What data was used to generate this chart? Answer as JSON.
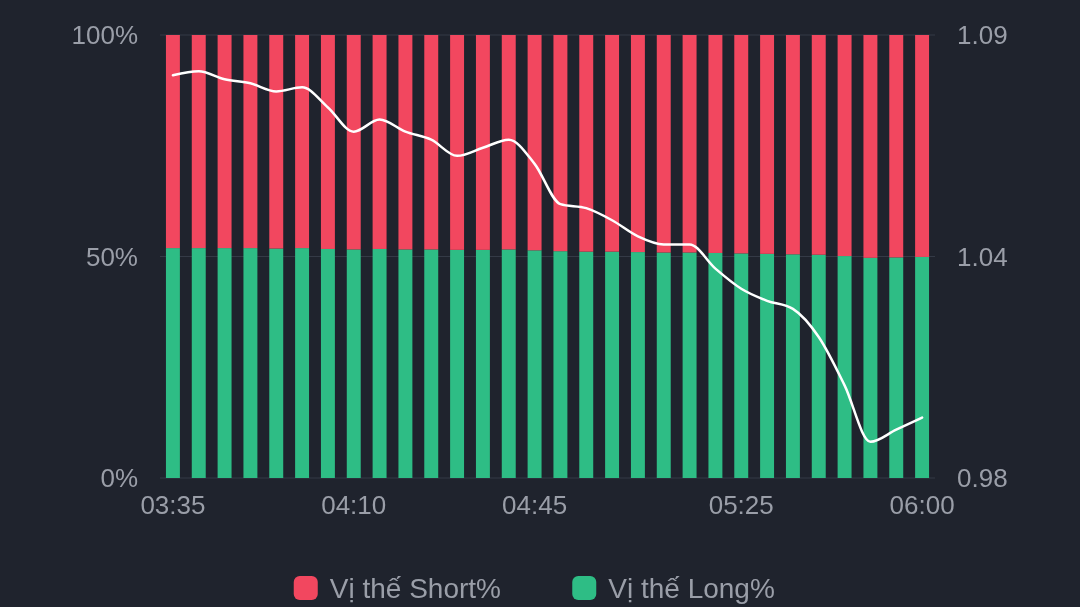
{
  "chart_data": {
    "type": "bar",
    "stacked": true,
    "categories": [
      "03:35",
      null,
      null,
      null,
      null,
      null,
      null,
      "04:10",
      null,
      null,
      null,
      null,
      null,
      null,
      "04:45",
      null,
      null,
      null,
      null,
      null,
      null,
      null,
      "05:25",
      null,
      null,
      null,
      null,
      null,
      null,
      "06:00"
    ],
    "series": [
      {
        "name": "Vị thế Long%",
        "color": "#2ebd85",
        "values": [
          51.9,
          51.9,
          51.9,
          51.9,
          51.8,
          51.9,
          51.7,
          51.6,
          51.7,
          51.6,
          51.6,
          51.5,
          51.5,
          51.6,
          51.4,
          51.2,
          51.1,
          51.1,
          51.0,
          50.9,
          50.9,
          50.8,
          50.7,
          50.6,
          50.5,
          50.4,
          50.1,
          49.7,
          49.8,
          49.9
        ]
      },
      {
        "name": "Vị thế Short%",
        "color": "#f2475f",
        "values": [
          48.1,
          48.1,
          48.1,
          48.1,
          48.2,
          48.1,
          48.3,
          48.4,
          48.3,
          48.4,
          48.4,
          48.5,
          48.5,
          48.4,
          48.6,
          48.8,
          48.9,
          48.9,
          49.0,
          49.1,
          49.1,
          49.2,
          49.3,
          49.4,
          49.5,
          49.6,
          49.9,
          50.3,
          50.2,
          50.1
        ]
      },
      {
        "type": "line",
        "axis": "y2",
        "color": "#ffffff",
        "values": [
          1.08,
          1.081,
          1.079,
          1.078,
          1.076,
          1.077,
          1.072,
          1.066,
          1.069,
          1.066,
          1.064,
          1.06,
          1.062,
          1.064,
          1.058,
          1.048,
          1.047,
          1.044,
          1.04,
          1.038,
          1.038,
          1.032,
          1.027,
          1.024,
          1.022,
          1.015,
          1.003,
          0.989,
          0.992,
          0.995
        ]
      }
    ],
    "ylim": [
      0,
      100
    ],
    "yticks": [
      {
        "value": 0,
        "label": "0%"
      },
      {
        "value": 50,
        "label": "50%"
      },
      {
        "value": 100,
        "label": "100%"
      }
    ],
    "y2lim": [
      0.98,
      1.09
    ],
    "y2ticks": [
      0.98,
      {
        "value": 1.035,
        "label": "1.04"
      },
      1.09
    ],
    "grid": "y",
    "legend": "bottom"
  }
}
